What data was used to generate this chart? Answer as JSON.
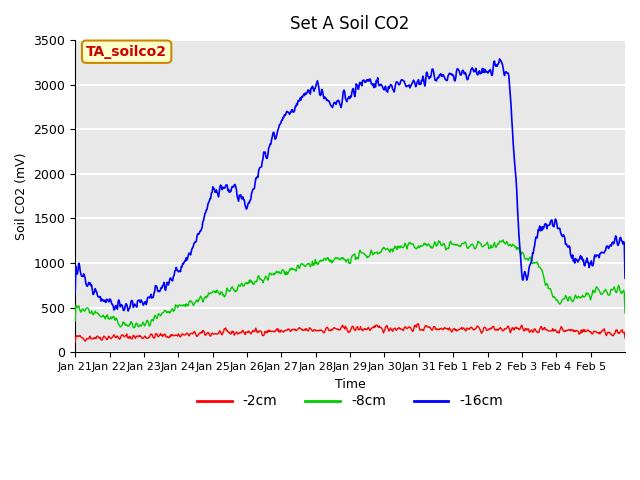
{
  "title": "Set A Soil CO2",
  "ylabel": "Soil CO2 (mV)",
  "xlabel": "Time",
  "annotation": "TA_soilco2",
  "xlim_days": 16,
  "ylim": [
    0,
    3500
  ],
  "yticks": [
    0,
    500,
    1000,
    1500,
    2000,
    2500,
    3000,
    3500
  ],
  "xtick_labels": [
    "Jan 21",
    "Jan 22",
    "Jan 23",
    "Jan 24",
    "Jan 25",
    "Jan 26",
    "Jan 27",
    "Jan 28",
    "Jan 29",
    "Jan 30",
    "Jan 31",
    "Feb 1",
    "Feb 2",
    "Feb 3",
    "Feb 4",
    "Feb 5"
  ],
  "colors": {
    "red": "#ff0000",
    "green": "#00cc00",
    "blue": "#0000ff",
    "bg": "#e8e8e8",
    "annotation_bg": "#ffffcc",
    "annotation_border": "#cc8800",
    "annotation_text": "#cc0000"
  },
  "legend": [
    {
      "label": "-2cm",
      "color": "#ff0000"
    },
    {
      "label": "-8cm",
      "color": "#00cc00"
    },
    {
      "label": "-16cm",
      "color": "#0000ff"
    }
  ]
}
